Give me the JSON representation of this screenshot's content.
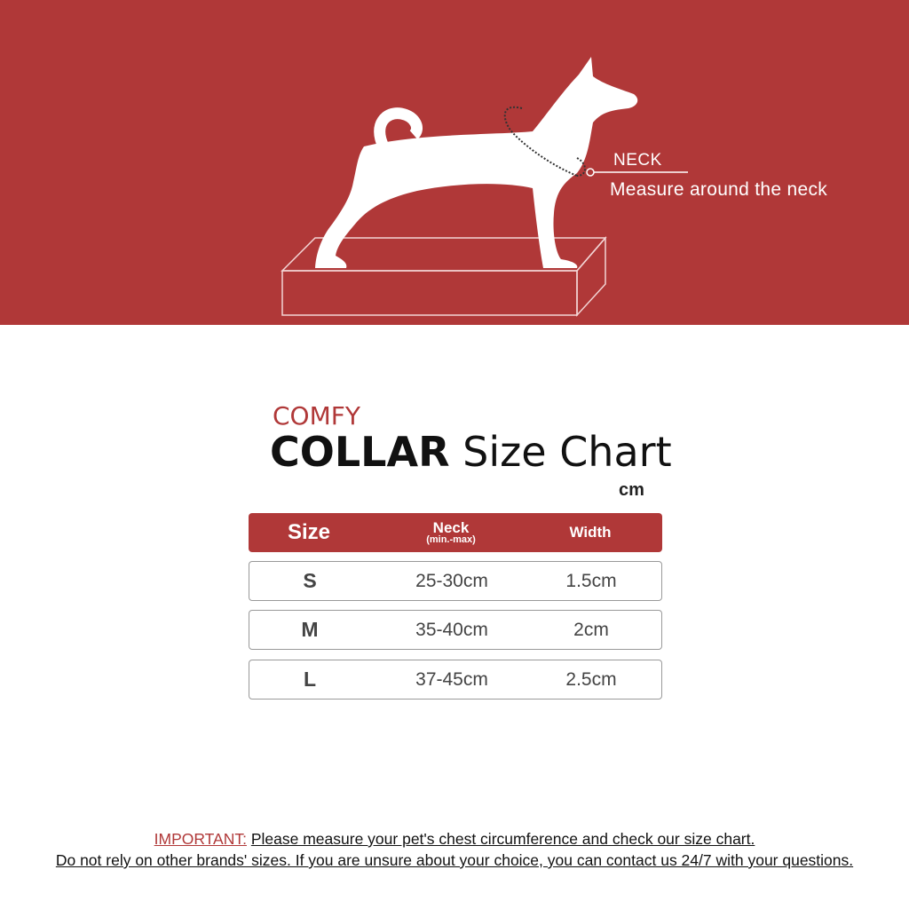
{
  "colors": {
    "brand_red": "#b03838",
    "text": "#111111",
    "cell_text": "#444444"
  },
  "illustration": {
    "icon": "dog-silhouette-on-box",
    "neck_label": "NECK",
    "neck_instruction": "Measure around the neck"
  },
  "heading": {
    "brand": "COMFY",
    "product": "COLLAR",
    "title_rest": "Size Chart",
    "unit": "cm"
  },
  "table": {
    "headers": {
      "size": "Size",
      "neck": "Neck",
      "neck_sub": "(min.-max)",
      "width": "Width"
    },
    "rows": [
      {
        "size": "S",
        "neck": "25-30cm",
        "width": "1.5cm"
      },
      {
        "size": "M",
        "neck": "35-40cm",
        "width": "2cm"
      },
      {
        "size": "L",
        "neck": "37-45cm",
        "width": "2.5cm"
      }
    ]
  },
  "footer": {
    "important_label": "IMPORTANT:",
    "line1": "Please measure your pet's chest circumference and check our size chart.",
    "line2": "Do not rely on other brands' sizes. If you are unsure about your choice, you can contact us 24/7 with your questions."
  }
}
